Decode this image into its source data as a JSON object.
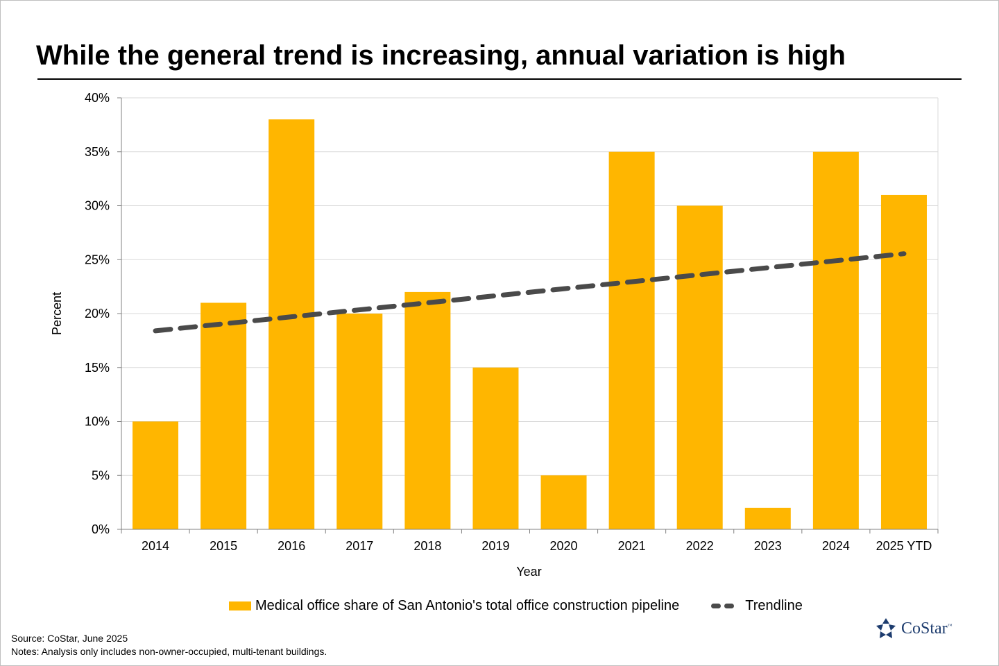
{
  "title": "While the general trend is increasing, annual variation is high",
  "chart_data": {
    "type": "bar",
    "categories": [
      "2014",
      "2015",
      "2016",
      "2017",
      "2018",
      "2019",
      "2020",
      "2021",
      "2022",
      "2023",
      "2024",
      "2025 YTD"
    ],
    "series": [
      {
        "name": "Medical office share of San Antonio's total office construction pipeline",
        "type": "bar",
        "values": [
          10,
          21,
          38,
          20,
          22,
          15,
          5,
          35,
          30,
          2,
          35,
          31
        ]
      },
      {
        "name": "Trendline",
        "type": "line",
        "style": "dashed",
        "values": [
          18.4,
          19.05,
          19.7,
          20.35,
          21.0,
          21.65,
          22.3,
          22.95,
          23.6,
          24.25,
          24.9,
          25.55
        ]
      }
    ],
    "xlabel": "Year",
    "ylabel": "Percent",
    "ylim": [
      0,
      40
    ],
    "yticks": [
      0,
      5,
      10,
      15,
      20,
      25,
      30,
      35,
      40
    ],
    "ytick_labels": [
      "0%",
      "5%",
      "10%",
      "15%",
      "20%",
      "25%",
      "30%",
      "35%",
      "40%"
    ],
    "grid": true,
    "legend_position": "bottom"
  },
  "colors": {
    "bar": "#FFB600",
    "trendline": "#4A4A4A",
    "grid": "#d9d9d9",
    "logo": "#1d3c6e"
  },
  "legend": {
    "bar_label": "Medical office share of San Antonio's total office construction pipeline",
    "trend_label": "Trendline"
  },
  "footer": {
    "source": "Source: CoStar, June 2025",
    "notes": "Notes: Analysis only includes non-owner-occupied, multi-tenant buildings."
  },
  "logo": {
    "name": "CoStar",
    "tm": "™",
    "icon": "costar-star-icon"
  }
}
